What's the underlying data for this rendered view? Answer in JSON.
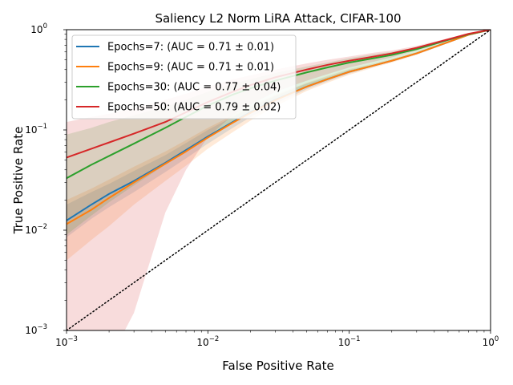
{
  "chart_data": {
    "type": "line",
    "title": "Saliency L2 Norm LiRA Attack, CIFAR-100",
    "xlabel": "False Positive Rate",
    "ylabel": "True Positive Rate",
    "xscale": "log",
    "yscale": "log",
    "xlim": [
      0.001,
      1
    ],
    "ylim": [
      0.001,
      1
    ],
    "x_ticks": [
      {
        "base": "10",
        "exp": "−3"
      },
      {
        "base": "10",
        "exp": "−2"
      },
      {
        "base": "10",
        "exp": "−1"
      },
      {
        "base": "10",
        "exp": "0"
      }
    ],
    "y_ticks": [
      {
        "base": "10",
        "exp": "−3"
      },
      {
        "base": "10",
        "exp": "−2"
      },
      {
        "base": "10",
        "exp": "−1"
      },
      {
        "base": "10",
        "exp": "0"
      }
    ],
    "legend_position": "upper-left",
    "grid": false,
    "chance_line": {
      "style": "dotted",
      "color": "#000000",
      "from": [
        0.001,
        0.001
      ],
      "to": [
        1,
        1
      ]
    },
    "series": [
      {
        "name": "Epochs=7: (AUC = 0.71 ± 0.01)",
        "color": "#1f77b4",
        "x": [
          0.001,
          0.0015,
          0.002,
          0.003,
          0.005,
          0.007,
          0.01,
          0.015,
          0.02,
          0.03,
          0.05,
          0.07,
          0.1,
          0.15,
          0.2,
          0.3,
          0.5,
          0.7,
          1.0
        ],
        "y": [
          0.0125,
          0.018,
          0.023,
          0.031,
          0.047,
          0.063,
          0.086,
          0.12,
          0.15,
          0.2,
          0.27,
          0.32,
          0.38,
          0.44,
          0.49,
          0.58,
          0.75,
          0.89,
          1.0
        ],
        "band_lower": [
          0.0085,
          0.013,
          0.017,
          0.024,
          0.038,
          0.052,
          0.073,
          0.105,
          0.134,
          0.183,
          0.255,
          0.305,
          0.365,
          0.43,
          0.48,
          0.57,
          0.74,
          0.885,
          1.0
        ],
        "band_upper": [
          0.018,
          0.024,
          0.029,
          0.039,
          0.056,
          0.074,
          0.1,
          0.135,
          0.167,
          0.218,
          0.29,
          0.335,
          0.395,
          0.45,
          0.5,
          0.59,
          0.76,
          0.895,
          1.0
        ]
      },
      {
        "name": "Epochs=9: (AUC = 0.71 ± 0.01)",
        "color": "#ff7f0e",
        "x": [
          0.001,
          0.0015,
          0.002,
          0.003,
          0.005,
          0.007,
          0.01,
          0.015,
          0.02,
          0.03,
          0.05,
          0.07,
          0.1,
          0.15,
          0.2,
          0.3,
          0.5,
          0.7,
          1.0
        ],
        "y": [
          0.0115,
          0.016,
          0.021,
          0.03,
          0.046,
          0.061,
          0.084,
          0.118,
          0.148,
          0.198,
          0.27,
          0.32,
          0.38,
          0.44,
          0.49,
          0.58,
          0.75,
          0.89,
          1.0
        ],
        "band_lower": [
          0.005,
          0.008,
          0.011,
          0.018,
          0.031,
          0.044,
          0.065,
          0.095,
          0.124,
          0.172,
          0.245,
          0.295,
          0.355,
          0.42,
          0.47,
          0.56,
          0.735,
          0.88,
          1.0
        ],
        "band_upper": [
          0.02,
          0.026,
          0.032,
          0.043,
          0.061,
          0.079,
          0.105,
          0.14,
          0.172,
          0.224,
          0.295,
          0.345,
          0.405,
          0.46,
          0.51,
          0.6,
          0.765,
          0.9,
          1.0
        ]
      },
      {
        "name": "Epochs=30: (AUC = 0.77 ± 0.04)",
        "color": "#2ca02c",
        "x": [
          0.001,
          0.0015,
          0.002,
          0.003,
          0.005,
          0.007,
          0.01,
          0.015,
          0.02,
          0.03,
          0.05,
          0.07,
          0.1,
          0.15,
          0.2,
          0.3,
          0.5,
          0.7,
          1.0
        ],
        "y": [
          0.033,
          0.045,
          0.055,
          0.073,
          0.105,
          0.135,
          0.175,
          0.225,
          0.26,
          0.31,
          0.375,
          0.42,
          0.47,
          0.52,
          0.56,
          0.64,
          0.79,
          0.9,
          1.0
        ],
        "band_lower": [
          0.009,
          0.014,
          0.019,
          0.028,
          0.045,
          0.06,
          0.085,
          0.12,
          0.15,
          0.2,
          0.27,
          0.32,
          0.38,
          0.44,
          0.49,
          0.58,
          0.75,
          0.885,
          1.0
        ],
        "band_upper": [
          0.09,
          0.105,
          0.12,
          0.14,
          0.17,
          0.2,
          0.24,
          0.29,
          0.32,
          0.37,
          0.43,
          0.47,
          0.52,
          0.57,
          0.6,
          0.67,
          0.81,
          0.91,
          1.0
        ]
      },
      {
        "name": "Epochs=50: (AUC = 0.79 ± 0.02)",
        "color": "#d62728",
        "x": [
          0.001,
          0.0015,
          0.002,
          0.003,
          0.005,
          0.007,
          0.01,
          0.015,
          0.02,
          0.03,
          0.05,
          0.07,
          0.1,
          0.15,
          0.2,
          0.3,
          0.5,
          0.7,
          1.0
        ],
        "y": [
          0.053,
          0.065,
          0.075,
          0.092,
          0.12,
          0.15,
          0.19,
          0.24,
          0.28,
          0.335,
          0.4,
          0.445,
          0.49,
          0.54,
          0.58,
          0.66,
          0.8,
          0.91,
          1.0
        ],
        "band_lower": [
          0.0005,
          0.0005,
          0.0005,
          0.0015,
          0.015,
          0.04,
          0.085,
          0.14,
          0.18,
          0.24,
          0.31,
          0.36,
          0.42,
          0.48,
          0.53,
          0.62,
          0.77,
          0.895,
          1.0
        ],
        "band_upper": [
          0.12,
          0.135,
          0.145,
          0.165,
          0.2,
          0.23,
          0.27,
          0.32,
          0.35,
          0.4,
          0.46,
          0.5,
          0.54,
          0.59,
          0.62,
          0.69,
          0.82,
          0.92,
          1.0
        ]
      }
    ]
  }
}
